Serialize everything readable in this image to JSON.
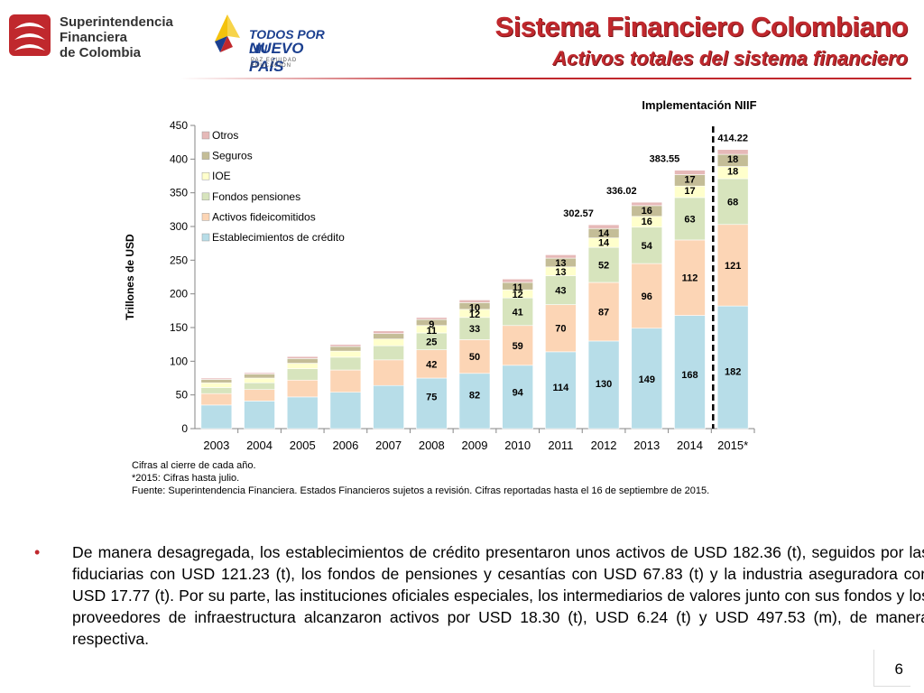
{
  "header": {
    "sfc_logo_lines": [
      "Superintendencia",
      "Financiera",
      "de Colombia"
    ],
    "gov_logo_line1": "TODOS POR UN",
    "gov_logo_line2": "NUEVO PAÍS",
    "gov_logo_line3": "PAZ  EQUIDAD  EDUCACIÓN",
    "title": "Sistema Financiero Colombiano",
    "subtitle": "Activos totales del sistema financiero"
  },
  "colors": {
    "accent": "#c0282d",
    "series": [
      "#b7dde8",
      "#fcd5b5",
      "#d7e4bd",
      "#ffffcc",
      "#c4bd97",
      "#e6b9b8"
    ]
  },
  "chart_data": {
    "type": "bar",
    "stacked": true,
    "ylabel": "Trillones de USD",
    "ylim": [
      0,
      450
    ],
    "yticks": [
      0,
      50,
      100,
      150,
      200,
      250,
      300,
      350,
      400,
      450
    ],
    "categories": [
      "2003",
      "2004",
      "2005",
      "2006",
      "2007",
      "2008",
      "2009",
      "2010",
      "2011",
      "2012",
      "2013",
      "2014",
      "2015*"
    ],
    "series": [
      {
        "name": "Establecimientos de crédito",
        "values": [
          35,
          41,
          47,
          54,
          64,
          75,
          82,
          94,
          114,
          130,
          149,
          168,
          182
        ],
        "labels": [
          "",
          "",
          "",
          "",
          "",
          "75",
          "82",
          "94",
          "114",
          "130",
          "149",
          "168",
          "182"
        ]
      },
      {
        "name": "Activos fideicomitidos",
        "values": [
          17,
          17,
          25,
          33,
          38,
          42,
          50,
          59,
          70,
          87,
          96,
          112,
          121
        ],
        "labels": [
          "",
          "",
          "",
          "",
          "",
          "42",
          "50",
          "59",
          "70",
          "87",
          "96",
          "112",
          "121"
        ]
      },
      {
        "name": "Fondos pensiones",
        "values": [
          9,
          10,
          17,
          19,
          21,
          25,
          33,
          41,
          43,
          52,
          54,
          63,
          68
        ],
        "labels": [
          "",
          "",
          "",
          "",
          "",
          "25",
          "33",
          "41",
          "43",
          "52",
          "54",
          "63",
          "68"
        ]
      },
      {
        "name": "IOE",
        "values": [
          7,
          7,
          8,
          9,
          10,
          11,
          12,
          12,
          13,
          14,
          16,
          17,
          18
        ],
        "labels": [
          "",
          "",
          "",
          "",
          "",
          "11",
          "12",
          "12",
          "13",
          "14",
          "16",
          "17",
          "18"
        ]
      },
      {
        "name": "Seguros",
        "values": [
          5,
          6,
          7,
          7,
          8,
          9,
          10,
          11,
          13,
          14,
          16,
          17,
          18
        ],
        "labels": [
          "",
          "",
          "",
          "",
          "",
          "9",
          "10",
          "11",
          "13",
          "14",
          "16",
          "17",
          "18"
        ]
      },
      {
        "name": "Otros",
        "values": [
          2,
          2,
          3,
          3,
          4,
          3,
          4,
          5,
          5,
          5.57,
          5.02,
          6.55,
          7.22
        ],
        "labels": [
          "",
          "",
          "",
          "",
          "",
          "",
          "",
          "",
          "",
          "",
          "",
          "",
          ""
        ]
      }
    ],
    "totals": {
      "2012": "302.57",
      "2013": "336.02",
      "2014": "383.55",
      "2015*": "414.22"
    },
    "annotation": "Implementación NIIF",
    "legend_position": "top-left",
    "grid": false
  },
  "footnotes": [
    "Cifras al cierre de cada año.",
    "*2015: Cifras hasta julio.",
    "Fuente: Superintendencia Financiera. Estados Financieros sujetos a revisión. Cifras reportadas hasta el 16 de septiembre de 2015."
  ],
  "bullet": {
    "text": "De manera desagregada, los establecimientos de crédito presentaron unos activos de USD 182.36 (t), seguidos por las fiduciarias con USD 121.23 (t), los fondos de pensiones y cesantías con USD 67.83 (t) y la industria aseguradora con USD 17.77 (t). Por su parte, las instituciones oficiales especiales, los intermediarios de valores junto con sus fondos y los proveedores de infraestructura alcanzaron activos por USD 18.30 (t), USD 6.24 (t) y USD 497.53 (m), de manera respectiva."
  },
  "page_number": "6"
}
